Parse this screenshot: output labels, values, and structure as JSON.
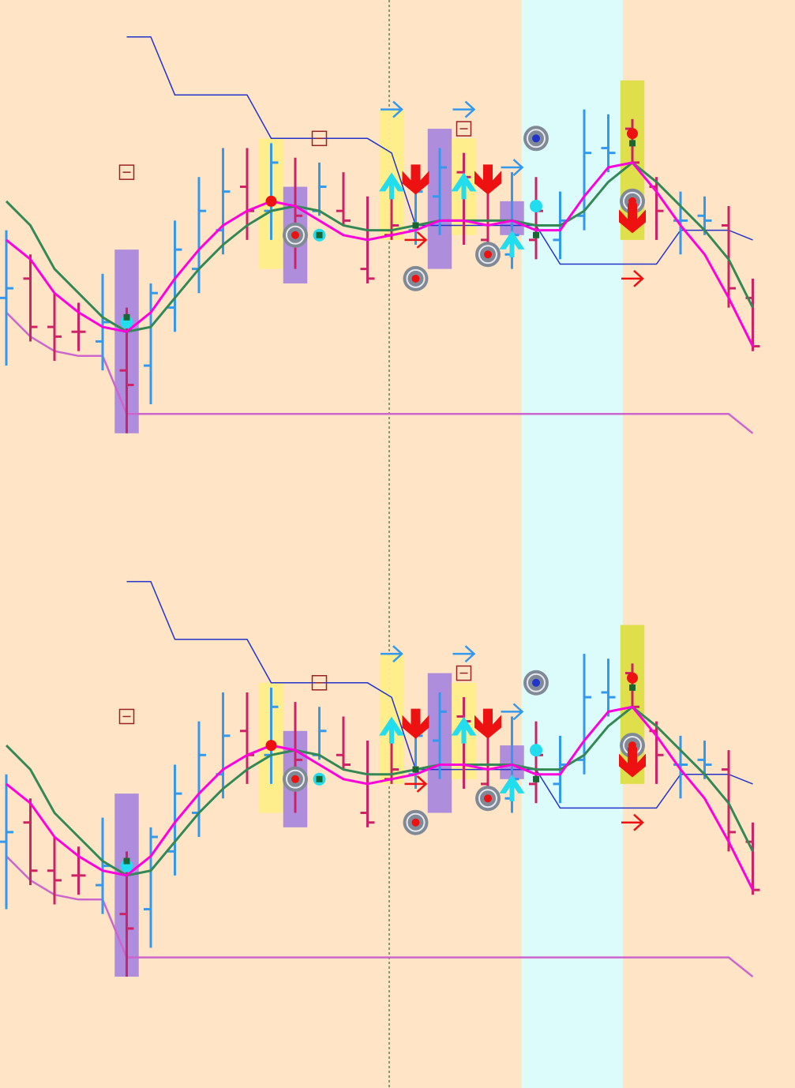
{
  "colors": {
    "background": "#ffe4c6",
    "highlight_zone": "#dcfcfc",
    "bar_up": "#3399ee",
    "bar_down": "#cc2266",
    "ma_fast": "#ff00dd",
    "ma_slow": "#338855",
    "envelope_upper": "#2233cc",
    "envelope_lower": "#cc66cc",
    "box_yellow": "#ffee88",
    "box_olive": "#dddd44",
    "box_purple": "#aa88dd",
    "signal_red": "#ee1111",
    "signal_cyan": "#22ddee",
    "arrow_blue": "#3399ee",
    "cursor_line": "#336633"
  },
  "chart_data": [
    {
      "type": "ohlc",
      "panel": "top",
      "title": "",
      "xlabel": "",
      "ylabel": "",
      "grid": false,
      "x": [
        1,
        2,
        3,
        4,
        5,
        6,
        7,
        8,
        9,
        10,
        11,
        12,
        13,
        14,
        15,
        16,
        17,
        18,
        19,
        20,
        21,
        22,
        23,
        24,
        25,
        26,
        27,
        28,
        29,
        30,
        31,
        32
      ],
      "bars": [
        {
          "low": 44,
          "high": 72,
          "open": 58,
          "close": 60,
          "dir": "up"
        },
        {
          "low": 49,
          "high": 67,
          "open": 62,
          "close": 52,
          "dir": "down"
        },
        {
          "low": 45,
          "high": 59,
          "open": 52,
          "close": 50,
          "dir": "down"
        },
        {
          "low": 47,
          "high": 57,
          "open": 51,
          "close": 51,
          "dir": "down"
        },
        {
          "low": 43,
          "high": 63,
          "open": 49,
          "close": 53,
          "dir": "up"
        },
        {
          "low": 30,
          "high": 56,
          "open": 43,
          "close": 40,
          "dir": "down"
        },
        {
          "low": 36,
          "high": 61,
          "open": 44,
          "close": 59,
          "dir": "up"
        },
        {
          "low": 51,
          "high": 74,
          "open": 56,
          "close": 68,
          "dir": "up"
        },
        {
          "low": 59,
          "high": 83,
          "open": 64,
          "close": 76,
          "dir": "up"
        },
        {
          "low": 67,
          "high": 89,
          "open": 72,
          "close": 80,
          "dir": "up"
        },
        {
          "low": 70,
          "high": 89,
          "open": 81,
          "close": 76,
          "dir": "down"
        },
        {
          "low": 70,
          "high": 90,
          "open": 76,
          "close": 86,
          "dir": "up"
        },
        {
          "low": 64,
          "high": 87,
          "open": 77,
          "close": 75,
          "dir": "down"
        },
        {
          "low": 75,
          "high": 86,
          "open": 76,
          "close": 81,
          "dir": "up"
        },
        {
          "low": 73,
          "high": 84,
          "open": 76,
          "close": 74,
          "dir": "down"
        },
        {
          "low": 61,
          "high": 79,
          "open": 64,
          "close": 62,
          "dir": "down"
        },
        {
          "low": 70,
          "high": 79,
          "open": 71,
          "close": 73,
          "dir": "down"
        },
        {
          "low": 69,
          "high": 84,
          "open": 72,
          "close": 80,
          "dir": "up"
        },
        {
          "low": 71,
          "high": 89,
          "open": 79,
          "close": 85,
          "dir": "up"
        },
        {
          "low": 69,
          "high": 88,
          "open": 84,
          "close": 83,
          "dir": "down"
        },
        {
          "low": 65,
          "high": 83,
          "open": 70,
          "close": 69,
          "dir": "down"
        },
        {
          "low": 64,
          "high": 84,
          "open": 67,
          "close": 71,
          "dir": "up"
        },
        {
          "low": 66,
          "high": 83,
          "open": 70,
          "close": 76,
          "dir": "down"
        },
        {
          "low": 66,
          "high": 80,
          "open": 70,
          "close": 74,
          "dir": "up"
        },
        {
          "low": 72,
          "high": 97,
          "open": 75,
          "close": 88,
          "dir": "up"
        },
        {
          "low": 84,
          "high": 96,
          "open": 89,
          "close": 88,
          "dir": "up"
        },
        {
          "low": 86,
          "high": 95,
          "open": 93,
          "close": 86,
          "dir": "down"
        },
        {
          "low": 70,
          "high": 83,
          "open": 81,
          "close": 76,
          "dir": "down"
        },
        {
          "low": 67,
          "high": 80,
          "open": 74,
          "close": 74,
          "dir": "up"
        },
        {
          "low": 71,
          "high": 79,
          "open": 75,
          "close": 74,
          "dir": "up"
        },
        {
          "low": 56,
          "high": 77,
          "open": 73,
          "close": 60,
          "dir": "down"
        },
        {
          "low": 47,
          "high": 62,
          "open": 58,
          "close": 48,
          "dir": "down"
        }
      ],
      "ma_fast": [
        70,
        66,
        59,
        55,
        52,
        51,
        55,
        62,
        68,
        73,
        76,
        78,
        77,
        74,
        71,
        70,
        71,
        72,
        74,
        74,
        73,
        74,
        72,
        72,
        79,
        85,
        86,
        80,
        73,
        67,
        58,
        48
      ],
      "ma_slow": [
        78,
        73,
        64,
        59,
        54,
        51,
        52,
        58,
        64,
        69,
        73,
        76,
        77,
        76,
        73,
        72,
        72,
        73,
        74,
        74,
        74,
        74,
        73,
        73,
        76,
        82,
        86,
        82,
        77,
        72,
        66,
        56
      ],
      "envelope_upper": [
        null,
        null,
        null,
        null,
        null,
        112,
        112,
        100,
        100,
        100,
        100,
        91,
        91,
        91,
        91,
        91,
        88,
        73,
        73,
        73,
        73,
        73,
        73,
        65,
        65,
        65,
        65,
        65,
        72,
        72,
        72,
        70
      ],
      "envelope_lower": [
        55,
        50,
        47,
        46,
        46,
        34,
        34,
        34,
        34,
        34,
        34,
        34,
        34,
        34,
        34,
        34,
        34,
        34,
        34,
        34,
        34,
        34,
        34,
        34,
        34,
        34,
        34,
        34,
        34,
        34,
        34,
        30
      ]
    },
    {
      "type": "ohlc",
      "panel": "bottom",
      "title": "",
      "xlabel": "",
      "ylabel": "",
      "grid": false,
      "x": [
        1,
        2,
        3,
        4,
        5,
        6,
        7,
        8,
        9,
        10,
        11,
        12,
        13,
        14,
        15,
        16,
        17,
        18,
        19,
        20,
        21,
        22,
        23,
        24,
        25,
        26,
        27,
        28,
        29,
        30,
        31,
        32
      ],
      "bars": [
        {
          "low": 44,
          "high": 72,
          "open": 58,
          "close": 60,
          "dir": "up"
        },
        {
          "low": 49,
          "high": 67,
          "open": 62,
          "close": 52,
          "dir": "down"
        },
        {
          "low": 45,
          "high": 59,
          "open": 52,
          "close": 50,
          "dir": "down"
        },
        {
          "low": 47,
          "high": 57,
          "open": 51,
          "close": 51,
          "dir": "down"
        },
        {
          "low": 43,
          "high": 63,
          "open": 49,
          "close": 53,
          "dir": "up"
        },
        {
          "low": 30,
          "high": 56,
          "open": 43,
          "close": 40,
          "dir": "down"
        },
        {
          "low": 36,
          "high": 61,
          "open": 44,
          "close": 59,
          "dir": "up"
        },
        {
          "low": 51,
          "high": 74,
          "open": 56,
          "close": 68,
          "dir": "up"
        },
        {
          "low": 59,
          "high": 83,
          "open": 64,
          "close": 76,
          "dir": "up"
        },
        {
          "low": 67,
          "high": 89,
          "open": 72,
          "close": 80,
          "dir": "up"
        },
        {
          "low": 70,
          "high": 89,
          "open": 81,
          "close": 76,
          "dir": "down"
        },
        {
          "low": 70,
          "high": 90,
          "open": 76,
          "close": 86,
          "dir": "up"
        },
        {
          "low": 64,
          "high": 87,
          "open": 77,
          "close": 75,
          "dir": "down"
        },
        {
          "low": 75,
          "high": 86,
          "open": 76,
          "close": 81,
          "dir": "up"
        },
        {
          "low": 73,
          "high": 84,
          "open": 76,
          "close": 74,
          "dir": "down"
        },
        {
          "low": 61,
          "high": 79,
          "open": 64,
          "close": 62,
          "dir": "down"
        },
        {
          "low": 70,
          "high": 79,
          "open": 71,
          "close": 73,
          "dir": "down"
        },
        {
          "low": 69,
          "high": 84,
          "open": 72,
          "close": 80,
          "dir": "up"
        },
        {
          "low": 71,
          "high": 89,
          "open": 79,
          "close": 85,
          "dir": "up"
        },
        {
          "low": 69,
          "high": 88,
          "open": 84,
          "close": 83,
          "dir": "down"
        },
        {
          "low": 65,
          "high": 83,
          "open": 70,
          "close": 69,
          "dir": "down"
        },
        {
          "low": 64,
          "high": 84,
          "open": 67,
          "close": 71,
          "dir": "up"
        },
        {
          "low": 66,
          "high": 83,
          "open": 70,
          "close": 76,
          "dir": "down"
        },
        {
          "low": 66,
          "high": 80,
          "open": 70,
          "close": 74,
          "dir": "up"
        },
        {
          "low": 72,
          "high": 97,
          "open": 75,
          "close": 88,
          "dir": "up"
        },
        {
          "low": 84,
          "high": 96,
          "open": 89,
          "close": 88,
          "dir": "up"
        },
        {
          "low": 86,
          "high": 95,
          "open": 93,
          "close": 86,
          "dir": "down"
        },
        {
          "low": 70,
          "high": 83,
          "open": 81,
          "close": 76,
          "dir": "down"
        },
        {
          "low": 67,
          "high": 80,
          "open": 74,
          "close": 74,
          "dir": "up"
        },
        {
          "low": 71,
          "high": 79,
          "open": 75,
          "close": 74,
          "dir": "up"
        },
        {
          "low": 56,
          "high": 77,
          "open": 73,
          "close": 60,
          "dir": "down"
        },
        {
          "low": 47,
          "high": 62,
          "open": 58,
          "close": 48,
          "dir": "down"
        }
      ],
      "ma_fast": [
        70,
        66,
        59,
        55,
        52,
        51,
        55,
        62,
        68,
        73,
        76,
        78,
        77,
        74,
        71,
        70,
        71,
        72,
        74,
        74,
        73,
        74,
        72,
        72,
        79,
        85,
        86,
        80,
        73,
        67,
        58,
        48
      ],
      "ma_slow": [
        78,
        73,
        64,
        59,
        54,
        51,
        52,
        58,
        64,
        69,
        73,
        76,
        77,
        76,
        73,
        72,
        72,
        73,
        74,
        74,
        74,
        74,
        73,
        73,
        76,
        82,
        86,
        82,
        77,
        72,
        66,
        56
      ],
      "envelope_upper": [
        null,
        null,
        null,
        null,
        null,
        112,
        112,
        100,
        100,
        100,
        100,
        91,
        91,
        91,
        91,
        91,
        88,
        73,
        73,
        73,
        73,
        73,
        73,
        65,
        65,
        65,
        65,
        65,
        72,
        72,
        72,
        70
      ],
      "envelope_lower": [
        55,
        50,
        47,
        46,
        46,
        34,
        34,
        34,
        34,
        34,
        34,
        34,
        34,
        34,
        34,
        34,
        34,
        34,
        34,
        34,
        34,
        34,
        34,
        34,
        34,
        34,
        34,
        34,
        34,
        34,
        34,
        30
      ]
    }
  ],
  "markers": {
    "highlight_zone": {
      "from_bar": 22,
      "to_bar": 26
    },
    "cursor_bar": 17,
    "boxes": [
      {
        "bar": 6,
        "span": 1,
        "low": 30,
        "high": 68,
        "color": "box_purple"
      },
      {
        "bar": 12,
        "span": 1,
        "low": 64,
        "high": 91,
        "color": "box_yellow"
      },
      {
        "bar": 13,
        "span": 1,
        "low": 61,
        "high": 81,
        "color": "box_purple"
      },
      {
        "bar": 17,
        "span": 1,
        "low": 70,
        "high": 97,
        "color": "box_yellow"
      },
      {
        "bar": 19,
        "span": 1,
        "low": 64,
        "high": 93,
        "color": "box_purple"
      },
      {
        "bar": 20,
        "span": 1,
        "low": 71,
        "high": 91,
        "color": "box_yellow"
      },
      {
        "bar": 22,
        "span": 1,
        "low": 71,
        "high": 78,
        "color": "box_purple"
      },
      {
        "bar": 27,
        "span": 1,
        "low": 70,
        "high": 103,
        "color": "box_olive"
      }
    ],
    "minus_boxes": [
      {
        "bar": 6,
        "value": 84
      },
      {
        "bar": 14,
        "value": 91
      },
      {
        "bar": 20,
        "value": 93
      }
    ],
    "down_arrows": [
      {
        "bar": 18,
        "value": 82
      },
      {
        "bar": 21,
        "value": 82
      },
      {
        "bar": 27,
        "value": 74
      }
    ],
    "up_arrows": [
      {
        "bar": 17,
        "value": 82
      },
      {
        "bar": 20,
        "value": 82
      },
      {
        "bar": 22,
        "value": 70
      }
    ],
    "right_arrows_blue": [
      {
        "bar": 17,
        "value": 97
      },
      {
        "bar": 20,
        "value": 97
      },
      {
        "bar": 22,
        "value": 85
      }
    ],
    "right_arrows_red": [
      {
        "bar": 18,
        "value": 70
      },
      {
        "bar": 27,
        "value": 62
      }
    ],
    "target_circles": [
      {
        "bar": 13,
        "value": 71,
        "dot": "red"
      },
      {
        "bar": 18,
        "value": 62,
        "dot": "red"
      },
      {
        "bar": 21,
        "value": 67,
        "dot": "red"
      },
      {
        "bar": 23,
        "value": 91,
        "dot": "blue"
      },
      {
        "bar": 27,
        "value": 78,
        "dot": "red"
      }
    ],
    "red_dots": [
      {
        "bar": 12,
        "value": 78
      },
      {
        "bar": 27,
        "value": 92
      }
    ],
    "cyan_dots": [
      {
        "bar": 6,
        "value": 53
      },
      {
        "bar": 14,
        "value": 71
      },
      {
        "bar": 23,
        "value": 77
      }
    ],
    "green_squares": [
      {
        "bar": 6,
        "value": 54
      },
      {
        "bar": 14,
        "value": 71
      },
      {
        "bar": 18,
        "value": 73
      },
      {
        "bar": 23,
        "value": 71
      },
      {
        "bar": 27,
        "value": 90
      }
    ]
  }
}
